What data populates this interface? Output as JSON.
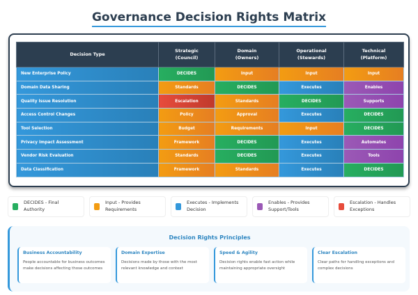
{
  "title": "Governance Decision Rights Matrix",
  "table": {
    "headers": [
      [
        "Decision Type",
        ""
      ],
      [
        "Strategic",
        "(Council)"
      ],
      [
        "Domain",
        "(Owners)"
      ],
      [
        "Operational",
        "(Stewards)"
      ],
      [
        "Technical",
        "(Platform)"
      ]
    ],
    "rows": [
      {
        "label": "New Enterprise Policy",
        "cells": [
          [
            "DECIDES",
            "g"
          ],
          [
            "Input",
            "o"
          ],
          [
            "Input",
            "o"
          ],
          [
            "Input",
            "o"
          ]
        ]
      },
      {
        "label": "Domain Data Sharing",
        "cells": [
          [
            "Standards",
            "o"
          ],
          [
            "DECIDES",
            "g"
          ],
          [
            "Executes",
            "b"
          ],
          [
            "Enables",
            "p"
          ]
        ]
      },
      {
        "label": "Quality Issue Resolution",
        "cells": [
          [
            "Escalation",
            "r"
          ],
          [
            "Standards",
            "o"
          ],
          [
            "DECIDES",
            "g"
          ],
          [
            "Supports",
            "p"
          ]
        ]
      },
      {
        "label": "Access Control Changes",
        "cells": [
          [
            "Policy",
            "o"
          ],
          [
            "Approval",
            "o"
          ],
          [
            "Executes",
            "b"
          ],
          [
            "DECIDES",
            "g"
          ]
        ]
      },
      {
        "label": "Tool Selection",
        "cells": [
          [
            "Budget",
            "o"
          ],
          [
            "Requirements",
            "o"
          ],
          [
            "Input",
            "o"
          ],
          [
            "DECIDES",
            "g"
          ]
        ]
      },
      {
        "label": "Privacy Impact Assessment",
        "cells": [
          [
            "Framework",
            "o"
          ],
          [
            "DECIDES",
            "g"
          ],
          [
            "Executes",
            "b"
          ],
          [
            "Automates",
            "p"
          ]
        ]
      },
      {
        "label": "Vendor Risk Evaluation",
        "cells": [
          [
            "Standards",
            "o"
          ],
          [
            "DECIDES",
            "g"
          ],
          [
            "Executes",
            "b"
          ],
          [
            "Tools",
            "p"
          ]
        ]
      },
      {
        "label": "Data Classification",
        "cells": [
          [
            "Framework",
            "o"
          ],
          [
            "Standards",
            "o"
          ],
          [
            "Executes",
            "b"
          ],
          [
            "DECIDES",
            "g"
          ]
        ]
      }
    ]
  },
  "colors": {
    "g": "#27ae60",
    "o": "#f39c12",
    "b": "#3498db",
    "p": "#9b59b6",
    "r": "#e74c3c"
  },
  "legend": [
    {
      "line1": "DECIDES - Final",
      "line2": "Authority",
      "color": "#27ae60"
    },
    {
      "line1": "Input - Provides",
      "line2": "Requirements",
      "color": "#f39c12"
    },
    {
      "line1": "Executes - Implements",
      "line2": "Decision",
      "color": "#3498db"
    },
    {
      "line1": "Enables - Provides",
      "line2": "Support/Tools",
      "color": "#9b59b6"
    },
    {
      "line1": "Escalation - Handles",
      "line2": "Exceptions",
      "color": "#e74c3c"
    }
  ],
  "principles": {
    "title": "Decision Rights Principles",
    "items": [
      {
        "title": "Business Accountability",
        "text": "People accountable for business outcomes make decisions affecting those outcomes"
      },
      {
        "title": "Domain Expertise",
        "text": "Decisions made by those with the most relevant knowledge and context"
      },
      {
        "title": "Speed & Agility",
        "text": "Decision rights enable fast action while maintaining appropriate oversight"
      },
      {
        "title": "Clear Escalation",
        "text": "Clear paths for handling exceptions and complex decisions"
      }
    ]
  }
}
